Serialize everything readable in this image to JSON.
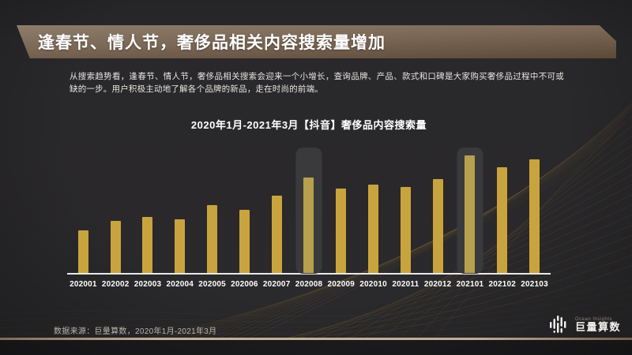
{
  "slide": {
    "header": {
      "title": "逢春节、情人节，奢侈品相关内容搜索量增加"
    },
    "description": "从搜索趋势看，逢春节、情人节，奢侈品相关搜索会迎来一个小增长，查询品牌、产品、款式和口碑是大家购买奢侈品过程中不可或缺的一步。用户积极主动地了解各个品牌的新品，走在时尚的前端。",
    "footer": {
      "source": "数据来源：巨量算数，2020年1月-2021年3月",
      "logo_en": "Ocean Insights",
      "logo_cn": "巨量算数"
    }
  },
  "chart_data": {
    "type": "bar",
    "title": "2020年1月-2021年3月【抖音】奢侈品内容搜索量",
    "categories": [
      "202001",
      "202002",
      "202003",
      "202004",
      "202005",
      "202006",
      "202007",
      "202008",
      "202009",
      "202010",
      "202011",
      "202012",
      "202101",
      "202102",
      "202103"
    ],
    "values": [
      36,
      44,
      48,
      46,
      58,
      54,
      66,
      81,
      72,
      75,
      73,
      80,
      100,
      90,
      97
    ],
    "highlighted_categories": [
      "202008",
      "202101"
    ],
    "xlabel": "",
    "ylabel": "",
    "ylim": [
      0,
      100
    ],
    "grid": false,
    "legend": false,
    "bar_color": "#C9A43E",
    "highlighted_bar_color": "#B7A04E",
    "highlight_band_color": "#3A3A3D",
    "axis_color": "#E9E9E9"
  },
  "colors": {
    "background": "#29282A",
    "banner_gradient_top": "#8E7C6B",
    "banner_gradient_bottom": "#5C4937",
    "bottom_band": "#1C1C1E",
    "separator_tan": "#BFAE97",
    "text_primary": "#FFFFFF",
    "text_body": "#E8E5E1",
    "footer_text": "#B9B5AF",
    "accent_gold": "#C9A43E"
  }
}
